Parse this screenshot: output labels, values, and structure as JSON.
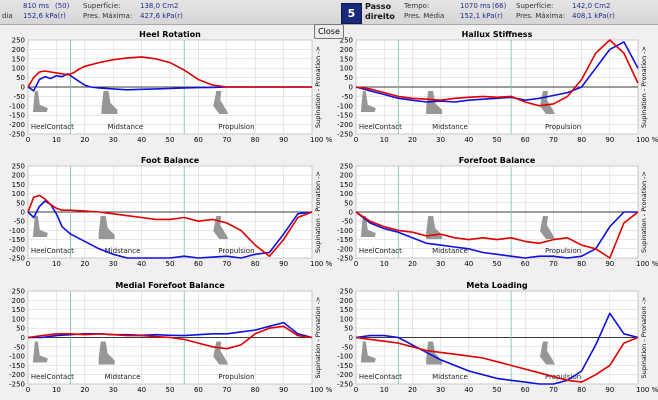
{
  "header": {
    "left": {
      "partial_time": "810 ms",
      "partial_time_count": "(50)",
      "partial_pres_label": "dia",
      "partial_pres": "152,6 kPa(r)",
      "surface_label": "Superfície:",
      "surface": "138,0 Cm2",
      "max_label": "Pres. Máxima:",
      "max": "427,6 kPa(r)"
    },
    "right": {
      "step_number": "5",
      "step_line1": "Passo",
      "step_line2": "direito",
      "time_label": "Tempo:",
      "time": "1070 ms",
      "time_count": "(66)",
      "mean_label": "Pres. Média",
      "mean": "152,1 kPa(r)",
      "surface_label": "Superfície:",
      "surface": "142,0 Cm2",
      "max_label": "Pres. Máxima:",
      "max": "408,1 kPa(r)"
    },
    "close_label": "Close"
  },
  "colors": {
    "series_a": "#1010dd",
    "series_b": "#e00000",
    "grid": "#d2d2d2",
    "phase_line": "#6cc2b0",
    "plot_bg": "#ffffff",
    "silhouette": "#8c8c8c"
  },
  "chart_data": [
    {
      "type": "line",
      "title": "Heel Rotation",
      "ylabel": "Supination - Pronation ->",
      "ylim": [
        -250,
        250
      ],
      "yticks": [
        250,
        200,
        150,
        100,
        50,
        0,
        -50,
        -100,
        -150,
        -200,
        -250
      ],
      "xlim": [
        0,
        100
      ],
      "xticks": [
        "0",
        "10",
        "20",
        "30",
        "40",
        "50",
        "60",
        "70",
        "80",
        "90",
        "100 %"
      ],
      "phase_lines": [
        15,
        55
      ],
      "phases": [
        {
          "label": "HeelContact",
          "x": 1
        },
        {
          "label": "Midstance",
          "x": 28
        },
        {
          "label": "Propulsion",
          "x": 67
        }
      ],
      "series": [
        {
          "color_key": "series_a",
          "x": [
            0,
            2,
            4,
            6,
            8,
            10,
            12,
            14,
            16,
            18,
            20,
            22,
            25,
            30,
            35,
            40,
            45,
            50,
            55,
            60,
            65,
            70,
            75,
            80,
            85,
            90,
            95,
            100
          ],
          "y": [
            0,
            -20,
            40,
            55,
            45,
            60,
            55,
            70,
            50,
            30,
            10,
            0,
            -5,
            -10,
            -15,
            -12,
            -10,
            -8,
            -5,
            -3,
            -2,
            0,
            0,
            0,
            0,
            0,
            0,
            0
          ]
        },
        {
          "color_key": "series_b",
          "x": [
            0,
            2,
            4,
            6,
            8,
            10,
            12,
            14,
            16,
            18,
            20,
            25,
            30,
            35,
            40,
            45,
            50,
            55,
            60,
            65,
            70,
            75,
            80,
            85,
            90,
            95,
            100
          ],
          "y": [
            0,
            50,
            80,
            85,
            80,
            75,
            70,
            65,
            75,
            95,
            110,
            130,
            145,
            155,
            160,
            150,
            130,
            90,
            40,
            10,
            0,
            0,
            0,
            0,
            0,
            0,
            0
          ]
        }
      ]
    },
    {
      "type": "line",
      "title": "Hallux Stiffness",
      "ylabel": "Supination - Pronation ->",
      "ylim": [
        -250,
        250
      ],
      "yticks": [
        250,
        200,
        150,
        100,
        50,
        0,
        -50,
        -100,
        -150,
        -200,
        -250
      ],
      "xlim": [
        0,
        100
      ],
      "xticks": [
        "0",
        "10",
        "20",
        "30",
        "40",
        "50",
        "60",
        "70",
        "80",
        "90",
        "100 %"
      ],
      "phase_lines": [
        15,
        55
      ],
      "phases": [
        {
          "label": "HeelContact",
          "x": 1
        },
        {
          "label": "Midstance",
          "x": 27
        },
        {
          "label": "Propulsion",
          "x": 67
        }
      ],
      "series": [
        {
          "color_key": "series_a",
          "x": [
            0,
            5,
            10,
            15,
            20,
            25,
            30,
            35,
            40,
            45,
            50,
            55,
            60,
            65,
            70,
            75,
            80,
            85,
            90,
            95,
            100
          ],
          "y": [
            0,
            -20,
            -40,
            -60,
            -70,
            -80,
            -75,
            -80,
            -70,
            -65,
            -60,
            -55,
            -70,
            -60,
            -45,
            -30,
            0,
            100,
            200,
            240,
            100
          ]
        },
        {
          "color_key": "series_b",
          "x": [
            0,
            5,
            10,
            15,
            20,
            25,
            30,
            35,
            40,
            45,
            50,
            55,
            60,
            65,
            70,
            75,
            80,
            85,
            90,
            95,
            100
          ],
          "y": [
            0,
            -10,
            -30,
            -50,
            -60,
            -65,
            -70,
            -60,
            -55,
            -50,
            -55,
            -50,
            -80,
            -100,
            -90,
            -50,
            40,
            180,
            250,
            180,
            20
          ]
        }
      ]
    },
    {
      "type": "line",
      "title": "Foot Balance",
      "ylabel": "Supination - Pronation ->",
      "ylim": [
        -250,
        250
      ],
      "yticks": [
        250,
        200,
        150,
        100,
        50,
        0,
        -50,
        -100,
        -150,
        -200,
        -250
      ],
      "xlim": [
        0,
        100
      ],
      "xticks": [
        "0",
        "10",
        "20",
        "30",
        "40",
        "50",
        "60",
        "70",
        "80",
        "90",
        "100 %"
      ],
      "phase_lines": [
        15,
        55
      ],
      "phases": [
        {
          "label": "HeelContact",
          "x": 1
        },
        {
          "label": "Midstance",
          "x": 27
        },
        {
          "label": "Propulsion",
          "x": 67
        }
      ],
      "series": [
        {
          "color_key": "series_a",
          "x": [
            0,
            2,
            4,
            6,
            8,
            10,
            12,
            15,
            20,
            25,
            30,
            35,
            40,
            45,
            50,
            55,
            60,
            65,
            70,
            75,
            80,
            85,
            90,
            95,
            100
          ],
          "y": [
            0,
            -30,
            30,
            60,
            40,
            -10,
            -80,
            -120,
            -160,
            -200,
            -230,
            -260,
            -270,
            -260,
            -255,
            -240,
            -250,
            -245,
            -240,
            -250,
            -230,
            -220,
            -120,
            -10,
            0
          ]
        },
        {
          "color_key": "series_b",
          "x": [
            0,
            2,
            4,
            6,
            8,
            10,
            12,
            15,
            20,
            25,
            30,
            35,
            40,
            45,
            50,
            55,
            60,
            65,
            70,
            75,
            80,
            85,
            90,
            95,
            100
          ],
          "y": [
            0,
            80,
            90,
            70,
            40,
            20,
            10,
            10,
            5,
            0,
            -10,
            -20,
            -30,
            -40,
            -40,
            -30,
            -50,
            -40,
            -60,
            -100,
            -180,
            -240,
            -150,
            -30,
            0
          ]
        }
      ]
    },
    {
      "type": "line",
      "title": "Forefoot Balance",
      "ylabel": "Supination - Pronation ->",
      "ylim": [
        -250,
        250
      ],
      "yticks": [
        250,
        200,
        150,
        100,
        50,
        0,
        -50,
        -100,
        -150,
        -200,
        -250
      ],
      "xlim": [
        0,
        100
      ],
      "xticks": [
        "0",
        "10",
        "20",
        "30",
        "40",
        "50",
        "60",
        "70",
        "80",
        "90",
        "100 %"
      ],
      "phase_lines": [
        15,
        55
      ],
      "phases": [
        {
          "label": "HeelContact",
          "x": 1
        },
        {
          "label": "Midstance",
          "x": 27
        },
        {
          "label": "Propulsion",
          "x": 67
        }
      ],
      "series": [
        {
          "color_key": "series_a",
          "x": [
            0,
            5,
            10,
            15,
            20,
            25,
            30,
            35,
            40,
            45,
            50,
            55,
            60,
            65,
            70,
            75,
            80,
            85,
            90,
            95,
            100
          ],
          "y": [
            0,
            -60,
            -90,
            -110,
            -140,
            -170,
            -180,
            -190,
            -200,
            -220,
            -230,
            -240,
            -250,
            -240,
            -240,
            -250,
            -240,
            -200,
            -80,
            0,
            0
          ]
        },
        {
          "color_key": "series_b",
          "x": [
            0,
            5,
            10,
            15,
            20,
            25,
            30,
            35,
            40,
            45,
            50,
            55,
            60,
            65,
            70,
            75,
            80,
            85,
            90,
            95,
            100
          ],
          "y": [
            0,
            -50,
            -80,
            -100,
            -110,
            -130,
            -120,
            -140,
            -150,
            -140,
            -150,
            -140,
            -160,
            -170,
            -150,
            -140,
            -180,
            -200,
            -250,
            -60,
            0
          ]
        }
      ]
    },
    {
      "type": "line",
      "title": "Medial Forefoot Balance",
      "ylabel": "Supination - Pronation ->",
      "ylim": [
        -250,
        250
      ],
      "yticks": [
        250,
        200,
        150,
        100,
        50,
        0,
        -50,
        -100,
        -150,
        -200,
        -250
      ],
      "xlim": [
        0,
        100
      ],
      "xticks": [
        "0",
        "10",
        "20",
        "30",
        "40",
        "50",
        "60",
        "70",
        "80",
        "90",
        "100 %"
      ],
      "phase_lines": [
        15,
        55
      ],
      "phases": [
        {
          "label": "HeelContact",
          "x": 1
        },
        {
          "label": "Midstance",
          "x": 27
        },
        {
          "label": "Propulsion",
          "x": 67
        }
      ],
      "series": [
        {
          "color_key": "series_a",
          "x": [
            0,
            5,
            10,
            15,
            20,
            25,
            30,
            35,
            40,
            45,
            50,
            55,
            60,
            65,
            70,
            75,
            80,
            85,
            90,
            95,
            100
          ],
          "y": [
            0,
            0,
            10,
            15,
            20,
            20,
            15,
            15,
            12,
            15,
            12,
            10,
            15,
            20,
            20,
            30,
            40,
            60,
            80,
            20,
            0
          ]
        },
        {
          "color_key": "series_b",
          "x": [
            0,
            5,
            10,
            15,
            20,
            25,
            30,
            35,
            40,
            45,
            50,
            55,
            60,
            65,
            70,
            75,
            80,
            85,
            90,
            95,
            100
          ],
          "y": [
            0,
            10,
            20,
            20,
            15,
            20,
            15,
            10,
            10,
            5,
            0,
            -10,
            -30,
            -50,
            -60,
            -40,
            20,
            50,
            60,
            10,
            0
          ]
        }
      ]
    },
    {
      "type": "line",
      "title": "Meta Loading",
      "ylabel": "Supination - Pronation ->",
      "ylim": [
        -250,
        250
      ],
      "yticks": [
        250,
        200,
        150,
        100,
        50,
        0,
        -50,
        -100,
        -150,
        -200,
        -250
      ],
      "xlim": [
        0,
        100
      ],
      "xticks": [
        "0",
        "10",
        "20",
        "30",
        "40",
        "50",
        "60",
        "70",
        "80",
        "90",
        "100 %"
      ],
      "phase_lines": [
        15,
        55
      ],
      "phases": [
        {
          "label": "HeelContact",
          "x": 1
        },
        {
          "label": "Midstance",
          "x": 27
        },
        {
          "label": "Propulsion",
          "x": 67
        }
      ],
      "series": [
        {
          "color_key": "series_a",
          "x": [
            0,
            5,
            10,
            15,
            20,
            25,
            30,
            35,
            40,
            45,
            50,
            55,
            60,
            65,
            70,
            75,
            80,
            85,
            90,
            95,
            100
          ],
          "y": [
            0,
            10,
            10,
            0,
            -40,
            -80,
            -120,
            -150,
            -180,
            -200,
            -220,
            -230,
            -240,
            -250,
            -250,
            -230,
            -180,
            -40,
            130,
            20,
            0
          ]
        },
        {
          "color_key": "series_b",
          "x": [
            0,
            5,
            10,
            15,
            20,
            25,
            30,
            35,
            40,
            45,
            50,
            55,
            60,
            65,
            70,
            75,
            80,
            85,
            90,
            95,
            100
          ],
          "y": [
            0,
            -10,
            -20,
            -30,
            -50,
            -70,
            -80,
            -90,
            -100,
            -110,
            -130,
            -150,
            -170,
            -190,
            -210,
            -230,
            -240,
            -200,
            -150,
            -30,
            0
          ]
        }
      ]
    }
  ]
}
